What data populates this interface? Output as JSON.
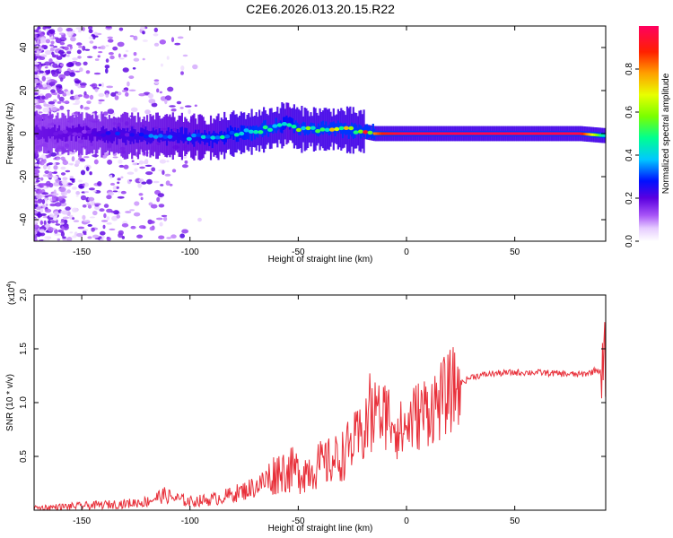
{
  "chart_data": [
    {
      "id": "spectrogram",
      "type": "heatmap",
      "title": "C2E6.2026.013.20.15.R22",
      "xlabel": "Height of straight line (km)",
      "ylabel": "Frequency (Hz)",
      "xlim": [
        -172,
        92
      ],
      "ylim": [
        -50,
        50
      ],
      "x_ticks": [
        -150,
        -100,
        -50,
        0,
        50
      ],
      "x_tick_labels": [
        "-150",
        "-100",
        "-50",
        "0",
        "50"
      ],
      "y_ticks": [
        -40,
        -20,
        0,
        20,
        40
      ],
      "y_tick_labels": [
        "-40",
        "-20",
        "0",
        "20",
        "40"
      ],
      "colorbar": {
        "label": "Normalized spectral amplitude",
        "range": [
          0,
          1
        ],
        "ticks": [
          0.0,
          0.2,
          0.4,
          0.6,
          0.8
        ],
        "tick_labels": [
          "0.0",
          "0.2",
          "0.4",
          "0.6",
          "0.8"
        ]
      },
      "ridge": {
        "x": [
          -172,
          -150,
          -130,
          -110,
          -90,
          -80,
          -70,
          -60,
          -55,
          -50,
          -40,
          -30,
          -20,
          -15,
          -10,
          -5,
          0,
          20,
          50,
          80,
          92
        ],
        "freq": [
          0,
          0,
          -1,
          -1,
          -2,
          0,
          1,
          3,
          5,
          2,
          2,
          2,
          1,
          0,
          0,
          0,
          0,
          0,
          0,
          0,
          -1
        ],
        "amplitude": [
          0.15,
          0.2,
          0.25,
          0.3,
          0.35,
          0.4,
          0.45,
          0.45,
          0.35,
          0.5,
          0.55,
          0.6,
          0.7,
          0.8,
          0.9,
          0.95,
          0.98,
          0.98,
          0.98,
          0.97,
          0.4
        ]
      }
    },
    {
      "id": "snr",
      "type": "line",
      "xlabel": "Height of straight line (km)",
      "ylabel": "SNR (10 * v/v)",
      "y_multiplier_label": "(x10",
      "y_multiplier_exp": "4",
      "y_multiplier_close": ")",
      "xlim": [
        -172,
        92
      ],
      "ylim": [
        0,
        2.0
      ],
      "x_ticks": [
        -150,
        -100,
        -50,
        0,
        50
      ],
      "x_tick_labels": [
        "-150",
        "-100",
        "-50",
        "0",
        "50"
      ],
      "y_ticks": [
        0.5,
        1.0,
        1.5,
        2.0
      ],
      "y_tick_labels": [
        "0.5",
        "1.0",
        "1.5",
        "2.0"
      ],
      "series": [
        {
          "name": "SNR",
          "color": "#e8303a",
          "x": [
            -172,
            -160,
            -150,
            -140,
            -130,
            -120,
            -115,
            -112,
            -105,
            -100,
            -95,
            -90,
            -85,
            -80,
            -75,
            -70,
            -65,
            -62,
            -58,
            -55,
            -52,
            -50,
            -45,
            -40,
            -35,
            -30,
            -28,
            -25,
            -20,
            -16,
            -14,
            -12,
            -10,
            -6,
            -3,
            0,
            3,
            8,
            15,
            20,
            25,
            30,
            40,
            50,
            60,
            70,
            80,
            85,
            88,
            90,
            91,
            92
          ],
          "y": [
            0.02,
            0.03,
            0.04,
            0.05,
            0.06,
            0.08,
            0.12,
            0.14,
            0.1,
            0.08,
            0.09,
            0.1,
            0.12,
            0.15,
            0.18,
            0.22,
            0.27,
            0.32,
            0.38,
            0.36,
            0.38,
            0.35,
            0.38,
            0.42,
            0.45,
            0.5,
            0.55,
            0.62,
            0.7,
            0.82,
            0.88,
            0.85,
            0.9,
            0.85,
            0.72,
            0.78,
            0.85,
            0.92,
            1.0,
            1.1,
            1.18,
            1.24,
            1.27,
            1.28,
            1.28,
            1.27,
            1.26,
            1.28,
            1.31,
            1.27,
            1.3,
            1.4
          ]
        }
      ]
    }
  ]
}
